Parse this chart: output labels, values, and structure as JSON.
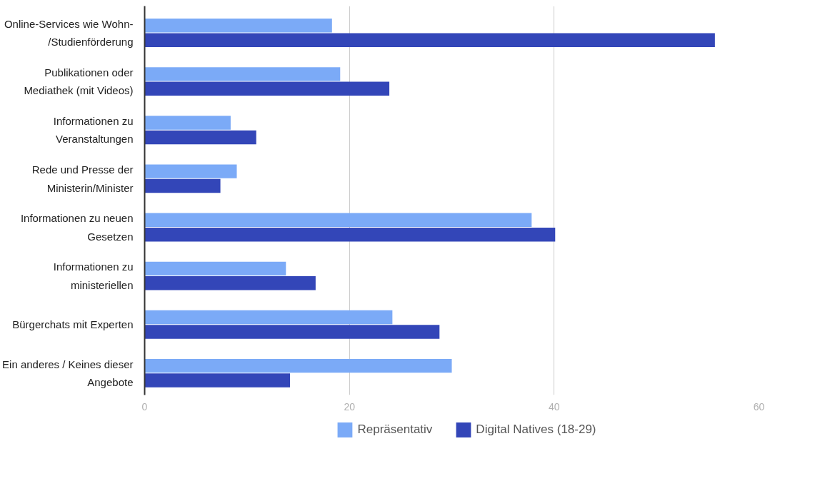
{
  "chart_data": {
    "type": "bar",
    "orientation": "horizontal",
    "categories": [
      "Online-Services wie Wohn-\n/Studienförderung",
      "Publikationen oder\nMediathek (mit Videos)",
      "Informationen zu\nVeranstaltungen",
      "Rede und Presse der\nMinisterin/Minister",
      "Informationen zu neuen\nGesetzen",
      "Informationen zu\nministeriellen",
      "Bürgerchats mit Experten",
      "Ein anderes / Keines dieser\nAngebote"
    ],
    "series": [
      {
        "name": "Repräsentativ",
        "color": "#7baaf7",
        "values": [
          18.3,
          19.1,
          8.4,
          9.0,
          37.8,
          13.8,
          24.2,
          30.0
        ]
      },
      {
        "name": "Digital Natives (18-29)",
        "color": "#3346b8",
        "values": [
          55.7,
          23.9,
          10.9,
          7.4,
          40.1,
          16.7,
          28.8,
          14.2
        ]
      }
    ],
    "xlim": [
      0,
      60
    ],
    "xticks": [
      0,
      20,
      40,
      60
    ],
    "grid": "x",
    "legend": "bottom"
  }
}
